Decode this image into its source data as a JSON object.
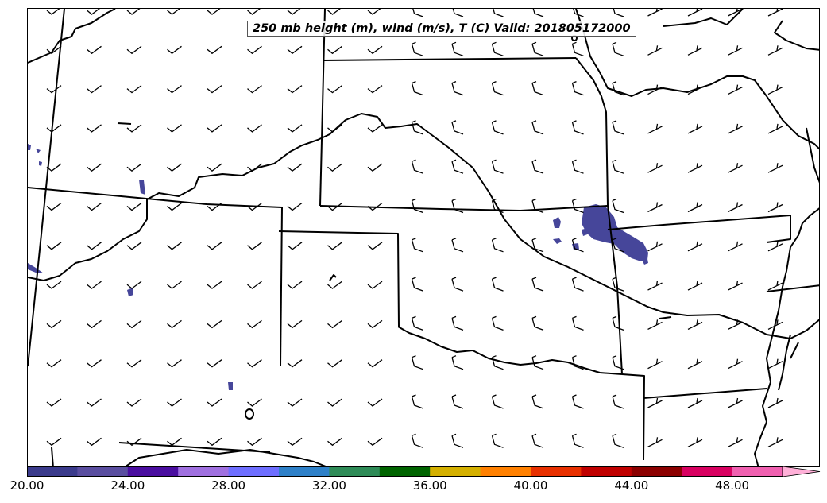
{
  "title": "250 mb height (m), wind (m/s), T (C) Valid: 201805172000",
  "colorbar": {
    "labels": [
      "20.00",
      "24.00",
      "28.00",
      "32.00",
      "36.00",
      "40.00",
      "44.00",
      "48.00"
    ],
    "colors": [
      "#3b3b8c",
      "#5a4ea0",
      "#4a0ea0",
      "#a070e0",
      "#6e6eff",
      "#2e80c8",
      "#2e8b57",
      "#006400",
      "#d4b000",
      "#ff8000",
      "#e83000",
      "#c00000",
      "#8b0000",
      "#d80060",
      "#f060b0"
    ],
    "extend_color": "#ffb0d8"
  },
  "field_color": "#46469a"
}
